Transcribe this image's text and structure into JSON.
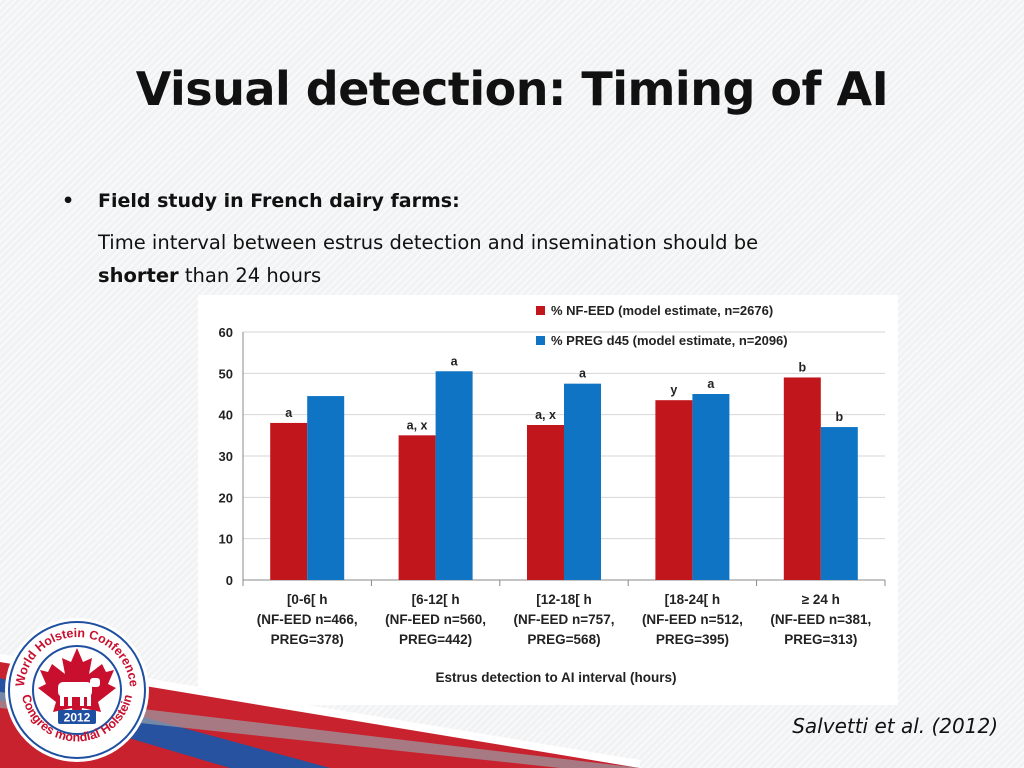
{
  "slide": {
    "title": "Visual detection: Timing of AI",
    "bullet_heading": "Field study in French dairy farms:",
    "desc_line1": "Time interval between estrus detection and insemination should be",
    "desc_bold": "shorter",
    "desc_rest": " than 24 hours",
    "citation": "Salvetti et al. (2012)"
  },
  "logo": {
    "text_top": "World Holstein Conference",
    "text_bottom": "Congrès mondial Holstein",
    "year": "2012",
    "colors": {
      "red": "#c8102e",
      "blue": "#1f4fa0"
    }
  },
  "chart_data": {
    "type": "bar",
    "categories": [
      [
        "[0-6[ h",
        "(NF-EED n=466,",
        "PREG=378)"
      ],
      [
        "[6-12[ h",
        "(NF-EED n=560,",
        "PREG=442)"
      ],
      [
        "[12-18[ h",
        "(NF-EED n=757,",
        "PREG=568)"
      ],
      [
        "[18-24[ h",
        "(NF-EED n=512,",
        "PREG=395)"
      ],
      [
        "≥ 24 h",
        "(NF-EED n=381,",
        "PREG=313)"
      ]
    ],
    "series": [
      {
        "name": "% NF-EED (model estimate, n=2676)",
        "color": "#c0161c",
        "values": [
          38,
          35,
          37.5,
          43.5,
          49
        ],
        "labels": [
          "a",
          "a, x",
          "a, x",
          "y",
          "b"
        ]
      },
      {
        "name": "% PREG d45 (model estimate, n=2096)",
        "color": "#0f74c4",
        "values": [
          44.5,
          50.5,
          47.5,
          45,
          37
        ],
        "labels": [
          "",
          "a",
          "a",
          "a",
          "b"
        ]
      }
    ],
    "xlabel": "Estrus detection to AI interval (hours)",
    "ylabel": "",
    "ylim": [
      0,
      60
    ],
    "yticks": [
      0,
      10,
      20,
      30,
      40,
      50,
      60
    ],
    "grid": true,
    "legend": "top-right"
  }
}
